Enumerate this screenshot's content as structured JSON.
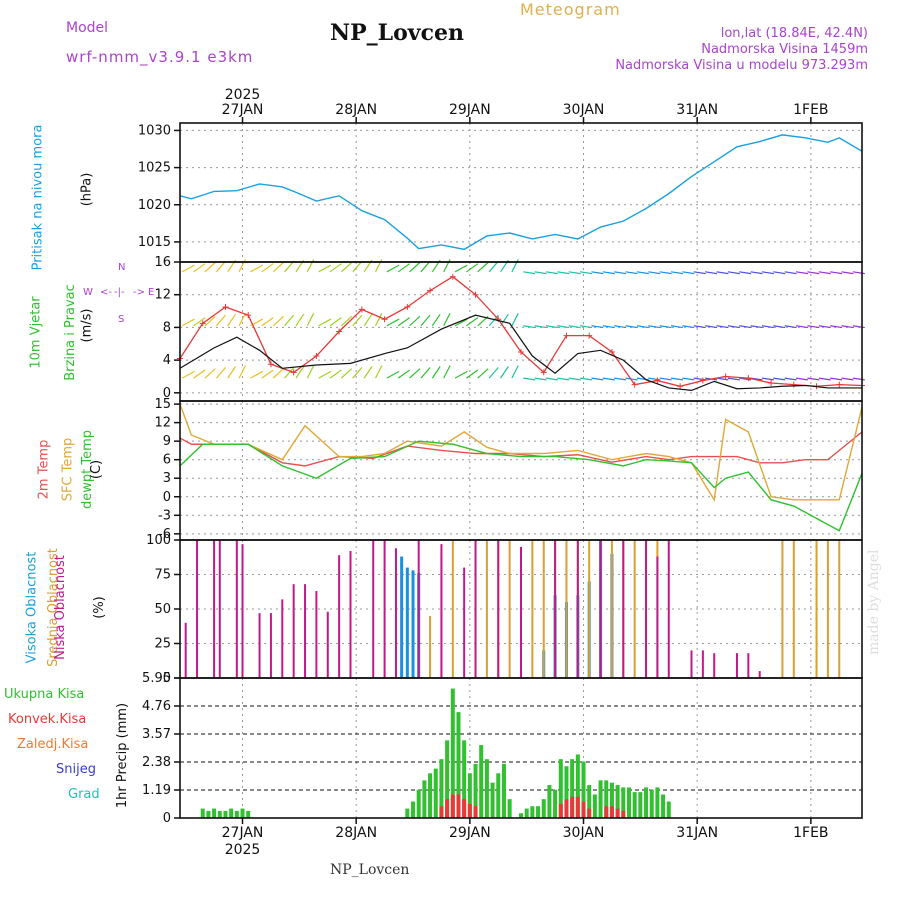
{
  "header": {
    "title": "NP_Lovcen",
    "subtitle": "Meteogram",
    "model_label": "Model",
    "model_value": "wrf-nmm_v3.9.1 e3km",
    "lonlat": "lon,lat (18.84E, 42.4N)",
    "altitude": "Nadmorska Visina 1459m",
    "model_altitude": "Nadmorska Visina u modelu 973.293m"
  },
  "footer": {
    "station": "NP_Lovcen",
    "credit": "made by Angel"
  },
  "colors": {
    "pressure": "#1aa0e0",
    "wind_speed": "#e83838",
    "temp2m": "#e85050",
    "sfc": "#e0a838",
    "dew": "#30c030",
    "high": "#1a90e0",
    "mid": "#d8a030",
    "low": "#c01a8a",
    "total": "#30c030",
    "conv": "#e83838"
  },
  "chart_data": [
    {
      "type": "line",
      "title": "Pressure",
      "ylabel_lines": [
        "Pritisak na nivou mora",
        "(hPa)"
      ],
      "yticks": [
        1015,
        1020,
        1025,
        1030
      ],
      "ylim": [
        1012.3,
        1031
      ],
      "x_start": 0,
      "x_end": 6.0,
      "xtick_dates": [
        "27JAN",
        "28JAN",
        "29JAN",
        "30JAN",
        "31JAN",
        "1FEB"
      ],
      "top_year": "2025",
      "bottom_year": "2025",
      "series": [
        {
          "name": "Pressure",
          "x": [
            0,
            0.1,
            0.3,
            0.5,
            0.7,
            0.9,
            1.0,
            1.2,
            1.4,
            1.6,
            1.8,
            2.0,
            2.1,
            2.3,
            2.5,
            2.7,
            2.9,
            3.1,
            3.3,
            3.5,
            3.7,
            3.9,
            4.1,
            4.3,
            4.5,
            4.7,
            4.9,
            5.1,
            5.3,
            5.5,
            5.7,
            5.8,
            6.0
          ],
          "y": [
            1021.2,
            1020.8,
            1021.8,
            1021.9,
            1022.8,
            1022.4,
            1021.8,
            1020.5,
            1021.2,
            1019.2,
            1018.0,
            1015.5,
            1014.1,
            1014.6,
            1014.0,
            1015.8,
            1016.2,
            1015.4,
            1016.0,
            1015.4,
            1017.0,
            1017.8,
            1019.5,
            1021.5,
            1023.8,
            1025.8,
            1027.8,
            1028.5,
            1029.4,
            1029.0,
            1028.4,
            1029.0,
            1027.2
          ]
        }
      ]
    },
    {
      "type": "line",
      "title": "Wind",
      "ylabel_lines": [
        "10m Vjetar",
        "Brzina i Pravac",
        "(m/s)"
      ],
      "direction_labels": [
        "W",
        "<-",
        "-|-",
        "->",
        "E",
        "N",
        "S"
      ],
      "yticks": [
        0,
        4,
        8,
        12,
        16
      ],
      "ylim": [
        -1,
        16
      ],
      "series": [
        {
          "name": "Wind speed",
          "x": [
            0,
            0.2,
            0.4,
            0.6,
            0.8,
            1.0,
            1.2,
            1.4,
            1.6,
            1.8,
            2.0,
            2.2,
            2.4,
            2.6,
            2.8,
            3.0,
            3.2,
            3.4,
            3.6,
            3.8,
            4.0,
            4.2,
            4.4,
            4.6,
            4.8,
            5.0,
            5.2,
            5.4,
            5.6,
            5.8,
            6.0
          ],
          "y": [
            4.2,
            8.5,
            10.5,
            9.5,
            3.5,
            2.5,
            4.5,
            7.5,
            10.2,
            9.0,
            10.5,
            12.5,
            14.2,
            12.0,
            9.0,
            5.0,
            2.5,
            7.0,
            7.0,
            5.0,
            1.0,
            1.5,
            0.8,
            1.5,
            2.0,
            1.8,
            1.2,
            1.0,
            0.8,
            1.0,
            0.9
          ]
        },
        {
          "name": "Mean wind",
          "x": [
            0,
            0.3,
            0.5,
            0.7,
            0.9,
            1.2,
            1.5,
            1.8,
            2.0,
            2.3,
            2.6,
            2.9,
            3.1,
            3.3,
            3.5,
            3.7,
            3.9,
            4.1,
            4.3,
            4.5,
            4.7,
            4.9,
            5.1,
            5.3,
            5.5,
            5.7,
            6.0
          ],
          "y": [
            3.0,
            5.5,
            6.8,
            5.2,
            3.0,
            3.4,
            3.6,
            4.8,
            5.5,
            7.8,
            9.5,
            8.5,
            4.5,
            2.4,
            4.8,
            5.2,
            4.0,
            1.6,
            0.6,
            0.3,
            1.4,
            0.5,
            0.6,
            0.8,
            0.9,
            0.6,
            0.6
          ]
        }
      ]
    },
    {
      "type": "line",
      "title": "Temperature",
      "ylabel_lines": [
        "2m Temp",
        "SFC Temp",
        "dewpt Temp",
        "(C)"
      ],
      "yticks": [
        -6,
        -3,
        0,
        3,
        6,
        9,
        12,
        15
      ],
      "ylim": [
        -7,
        15.5
      ],
      "series": [
        {
          "name": "2m Temp",
          "x": [
            0,
            0.1,
            0.3,
            0.6,
            0.9,
            1.1,
            1.4,
            1.7,
            2.0,
            2.3,
            2.6,
            2.9,
            3.2,
            3.5,
            3.8,
            4.1,
            4.3,
            4.5,
            4.7,
            4.9,
            5.1,
            5.3,
            5.5,
            5.7,
            6.0
          ],
          "y": [
            9.5,
            8.5,
            8.5,
            8.5,
            5.5,
            5.0,
            6.5,
            6.2,
            8.2,
            7.5,
            7.0,
            7.0,
            6.5,
            6.8,
            5.6,
            6.5,
            6.0,
            6.5,
            6.5,
            6.5,
            5.5,
            5.5,
            6.0,
            6.0,
            10.5
          ]
        },
        {
          "name": "SFC Temp",
          "x": [
            0,
            0.1,
            0.3,
            0.6,
            0.9,
            1.1,
            1.4,
            1.6,
            1.8,
            2.0,
            2.3,
            2.5,
            2.7,
            2.9,
            3.2,
            3.5,
            3.8,
            4.1,
            4.3,
            4.5,
            4.7,
            4.8,
            5.0,
            5.2,
            5.4,
            5.6,
            5.8,
            6.0
          ],
          "y": [
            15,
            10.0,
            8.5,
            8.5,
            6.0,
            11.5,
            6.5,
            6.5,
            7.0,
            9.0,
            8.2,
            10.5,
            8.0,
            7.0,
            7.0,
            7.5,
            6.0,
            7.0,
            6.5,
            5.5,
            -0.5,
            12.5,
            10.5,
            0,
            -0.5,
            -0.5,
            -0.5,
            14.5
          ]
        },
        {
          "name": "Dewpt Temp",
          "x": [
            0,
            0.2,
            0.4,
            0.6,
            0.9,
            1.2,
            1.5,
            1.8,
            2.1,
            2.4,
            2.7,
            3.0,
            3.3,
            3.6,
            3.9,
            4.1,
            4.3,
            4.5,
            4.7,
            4.8,
            5.0,
            5.2,
            5.4,
            5.6,
            5.8,
            6.0
          ],
          "y": [
            5.0,
            8.5,
            8.5,
            8.5,
            5.0,
            3.0,
            6.2,
            6.5,
            9.0,
            8.5,
            7.0,
            6.5,
            6.5,
            6.0,
            5.0,
            6.0,
            5.8,
            5.5,
            1.5,
            3.0,
            4.0,
            -0.5,
            -1.5,
            -3.5,
            -5.5,
            3.8
          ]
        }
      ]
    },
    {
      "type": "bar",
      "title": "Cloud cover",
      "ylabel_lines": [
        "Visoka Oblacnost",
        "Srednja Oblacnost",
        "Niska Oblacnost",
        "(%)"
      ],
      "yticks": [
        0,
        25,
        50,
        75,
        100
      ],
      "ylim": [
        0,
        100
      ],
      "series": [
        {
          "name": "Visoka Oblacnost",
          "x": [
            1.95,
            2.0,
            2.05,
            2.1,
            3.2,
            3.3,
            3.4,
            3.5,
            3.6,
            3.7,
            3.8
          ],
          "y": [
            88,
            80,
            78,
            76,
            20,
            60,
            55,
            60,
            70,
            100,
            90
          ]
        },
        {
          "name": "Srednja Oblacnost",
          "x": [
            2.2,
            2.3,
            2.4,
            2.6,
            2.7,
            2.8,
            2.9,
            3.1,
            3.2,
            3.3,
            3.4,
            3.5,
            3.6,
            3.7,
            3.8,
            3.9,
            4.0,
            4.1,
            4.2,
            5.3,
            5.4,
            5.6,
            5.7,
            5.8
          ],
          "y": [
            45,
            90,
            100,
            100,
            100,
            100,
            100,
            100,
            100,
            100,
            100,
            100,
            100,
            100,
            100,
            100,
            100,
            100,
            100,
            100,
            100,
            100,
            100,
            100
          ]
        },
        {
          "name": "Niska Oblacnost",
          "x": [
            0.05,
            0.15,
            0.3,
            0.35,
            0.5,
            0.55,
            0.7,
            0.8,
            0.9,
            1.0,
            1.1,
            1.2,
            1.3,
            1.4,
            1.5,
            1.7,
            1.8,
            1.9,
            2.1,
            2.3,
            2.5,
            2.6,
            2.8,
            3.0,
            3.3,
            3.5,
            3.7,
            3.9,
            4.1,
            4.2,
            4.3,
            4.5,
            4.6,
            4.7,
            4.9,
            5.0,
            5.1
          ],
          "y": [
            40,
            100,
            100,
            100,
            100,
            97,
            47,
            47,
            57,
            68,
            68,
            63,
            48,
            89,
            92,
            100,
            100,
            94,
            100,
            97,
            80,
            100,
            100,
            95,
            100,
            100,
            100,
            100,
            100,
            88,
            100,
            20,
            20,
            18,
            18,
            18,
            5
          ]
        }
      ]
    },
    {
      "type": "bar",
      "title": "Precipitation",
      "ylabel_lines": [
        "1hr Precip (mm)"
      ],
      "legend": [
        "Ukupna Kisa",
        "Konvek.Kisa",
        "Zaledj.Kisa",
        "Snijeg",
        "Grad"
      ],
      "yticks": [
        0,
        1.19,
        2.38,
        3.57,
        4.76,
        5.95
      ],
      "ylim": [
        0,
        5.95
      ],
      "series": [
        {
          "name": "Ukupna Kisa",
          "x": [
            0.2,
            0.25,
            0.3,
            0.35,
            0.4,
            0.45,
            0.5,
            0.55,
            0.6,
            2.0,
            2.05,
            2.1,
            2.15,
            2.2,
            2.25,
            2.3,
            2.35,
            2.4,
            2.45,
            2.5,
            2.55,
            2.6,
            2.65,
            2.7,
            2.75,
            2.8,
            2.85,
            2.9,
            3.0,
            3.05,
            3.1,
            3.15,
            3.2,
            3.25,
            3.3,
            3.35,
            3.4,
            3.45,
            3.5,
            3.55,
            3.6,
            3.65,
            3.7,
            3.75,
            3.8,
            3.85,
            3.9,
            3.95,
            4.0,
            4.05,
            4.1,
            4.15,
            4.2,
            4.25,
            4.3
          ],
          "y": [
            0.4,
            0.3,
            0.4,
            0.3,
            0.3,
            0.4,
            0.3,
            0.4,
            0.3,
            0.4,
            0.7,
            1.2,
            1.6,
            1.9,
            2.1,
            2.5,
            3.3,
            5.5,
            4.5,
            3.3,
            1.9,
            2.3,
            3.1,
            2.5,
            1.5,
            1.9,
            2.3,
            0.8,
            0.2,
            0.4,
            0.5,
            0.5,
            0.8,
            1.4,
            1.2,
            2.5,
            2.2,
            2.5,
            2.7,
            2.4,
            1.4,
            1.0,
            1.6,
            1.6,
            1.5,
            1.4,
            1.3,
            1.3,
            1.1,
            1.1,
            1.3,
            1.2,
            1.3,
            1.0,
            0.7
          ]
        },
        {
          "name": "Konvek.Kisa",
          "x": [
            2.3,
            2.35,
            2.4,
            2.45,
            2.5,
            2.55,
            2.6,
            3.35,
            3.4,
            3.45,
            3.5,
            3.55,
            3.6,
            3.75,
            3.8,
            3.85,
            3.9
          ],
          "y": [
            0.5,
            0.8,
            1.0,
            1.0,
            0.8,
            0.6,
            0.5,
            0.6,
            0.8,
            0.9,
            0.9,
            0.7,
            0.4,
            0.5,
            0.5,
            0.4,
            0.3
          ]
        }
      ]
    }
  ]
}
